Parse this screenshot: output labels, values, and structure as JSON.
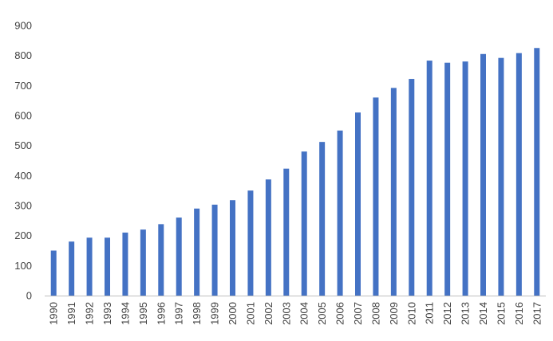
{
  "chart_data": {
    "type": "bar",
    "title": "",
    "xlabel": "",
    "ylabel": "",
    "categories": [
      "1990",
      "1991",
      "1992",
      "1993",
      "1994",
      "1995",
      "1996",
      "1997",
      "1998",
      "1999",
      "2000",
      "2001",
      "2002",
      "2003",
      "2004",
      "2005",
      "2006",
      "2007",
      "2008",
      "2009",
      "2010",
      "2011",
      "2012",
      "2013",
      "2014",
      "2015",
      "2016",
      "2017"
    ],
    "values": [
      150,
      180,
      193,
      193,
      210,
      220,
      238,
      260,
      290,
      303,
      318,
      350,
      387,
      423,
      480,
      512,
      550,
      610,
      660,
      692,
      722,
      783,
      776,
      780,
      805,
      792,
      808,
      825
    ],
    "ylim": [
      0,
      900
    ],
    "yticks": [
      0,
      100,
      200,
      300,
      400,
      500,
      600,
      700,
      800,
      900
    ],
    "grid": false,
    "legend": "none",
    "colors": {
      "bar": "#4472c4",
      "axis": "#bfbfbf",
      "text": "#404040"
    }
  }
}
